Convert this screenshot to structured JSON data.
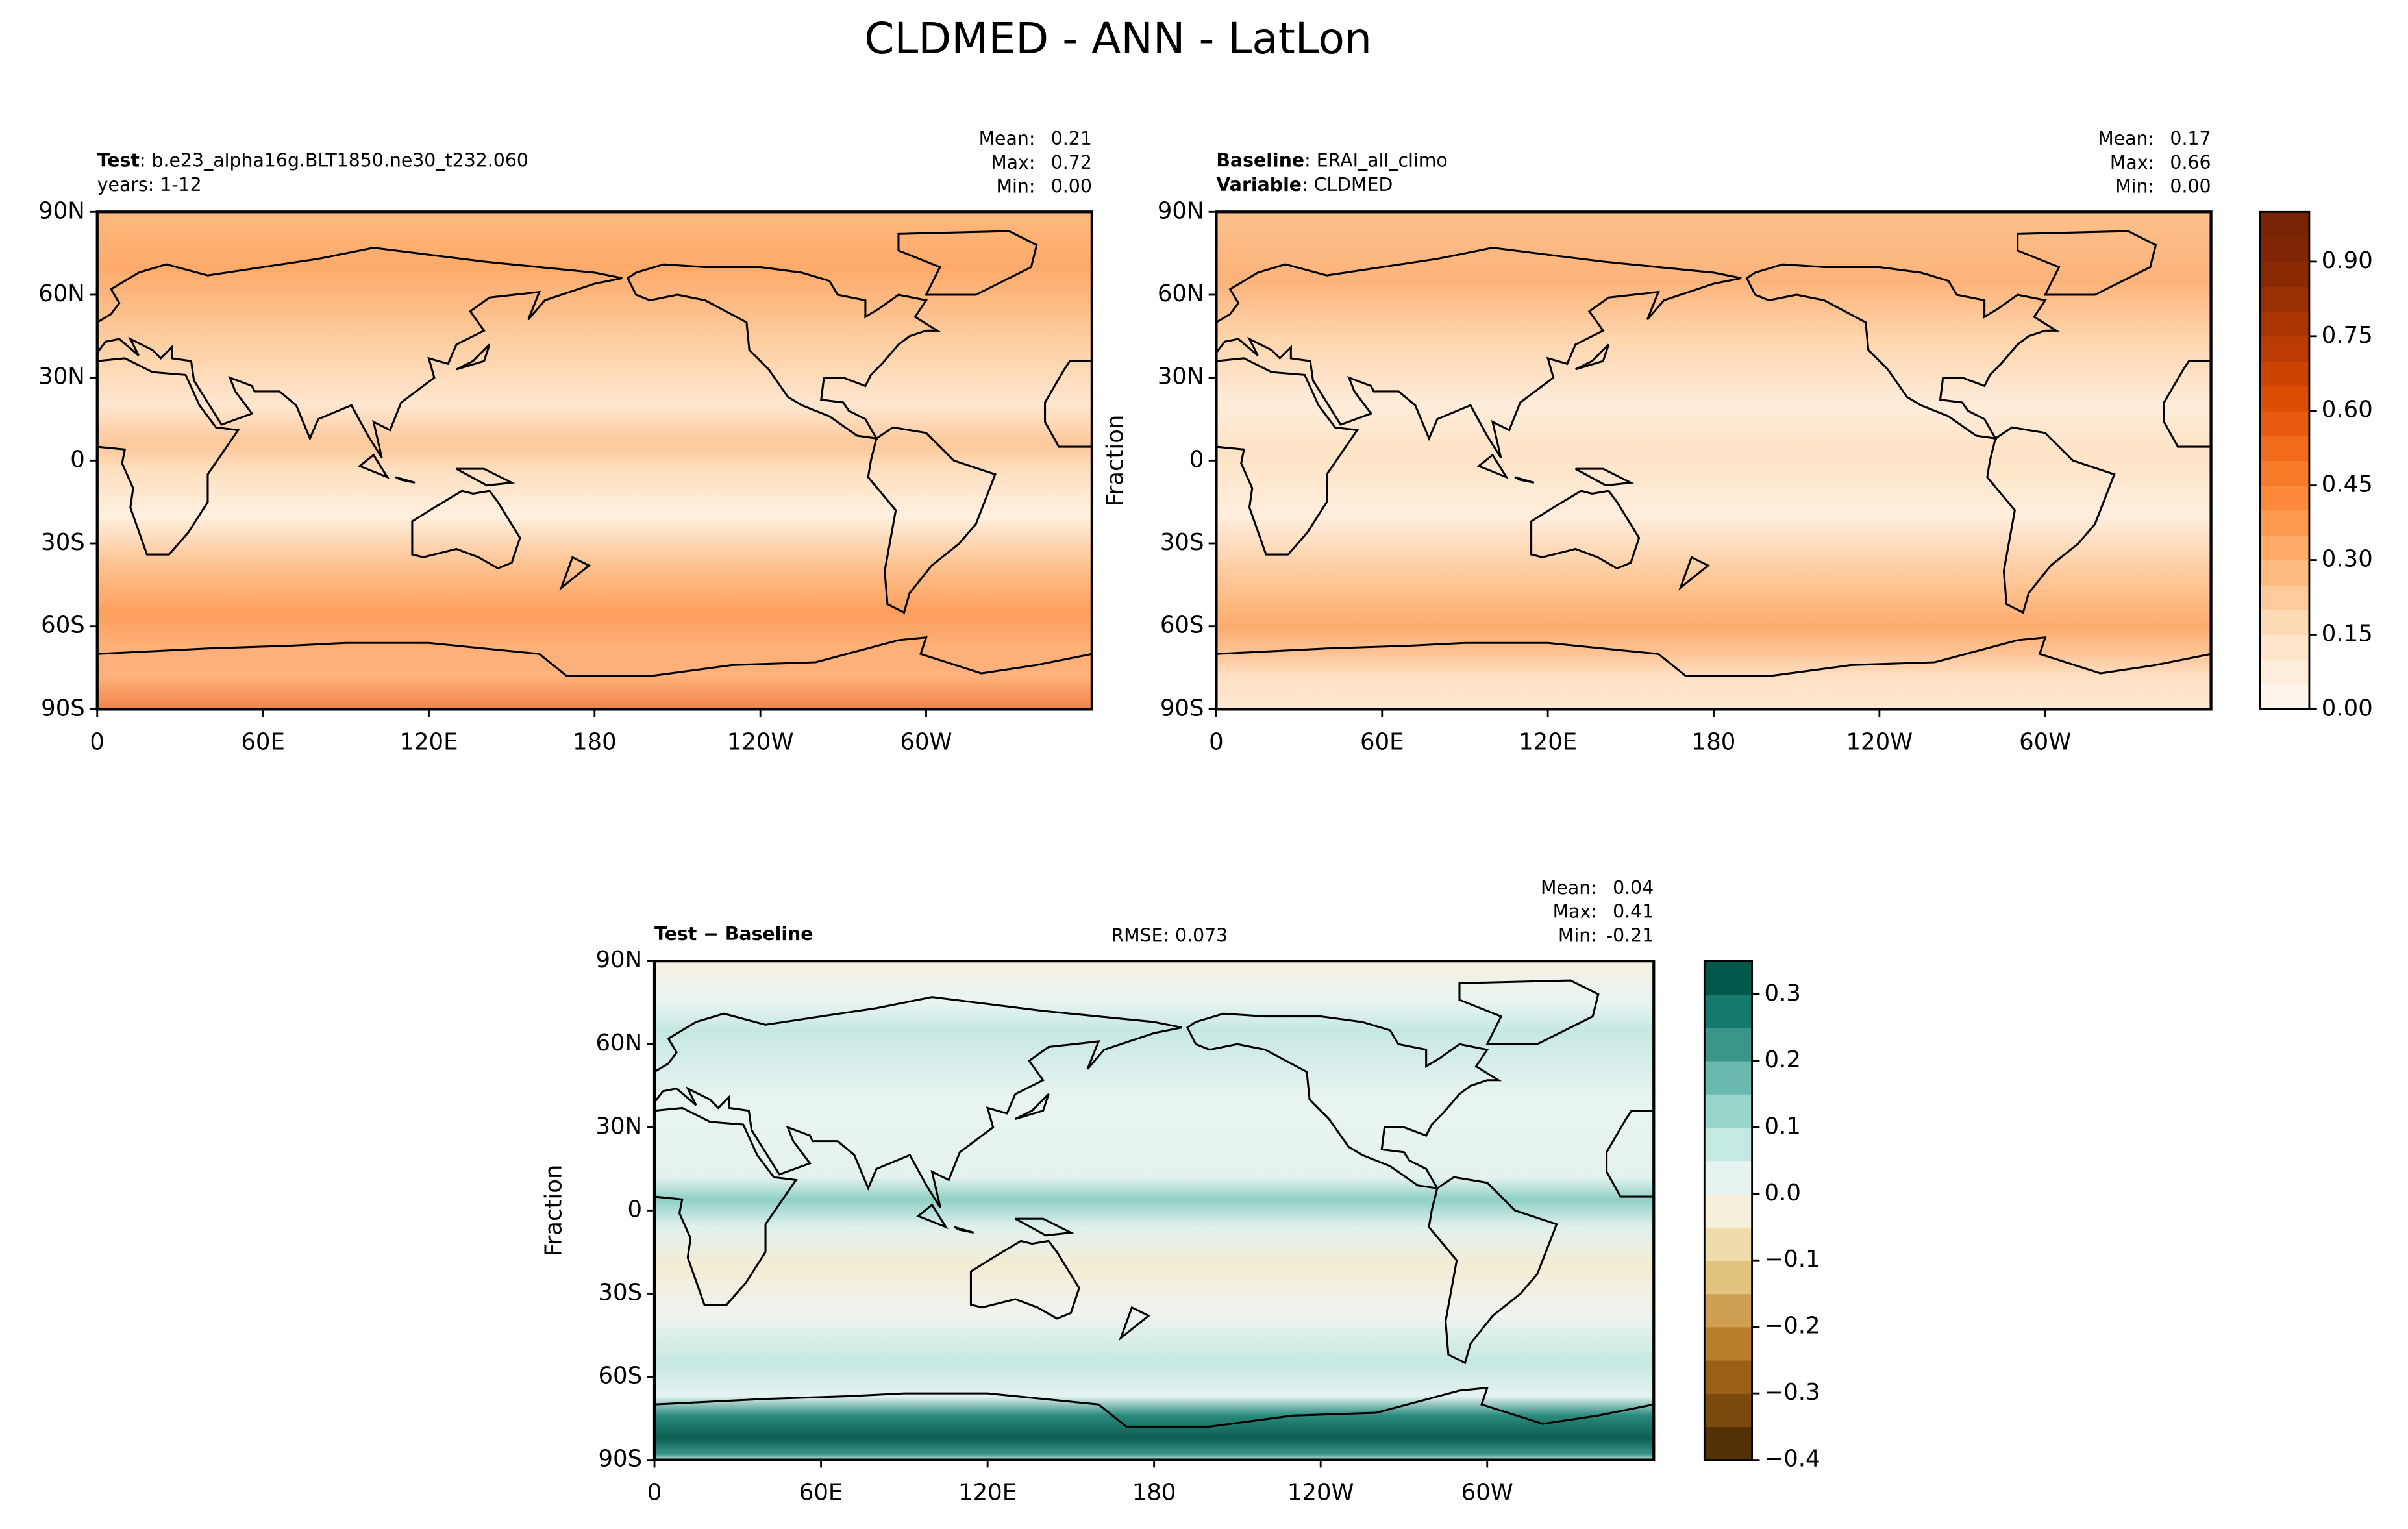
{
  "title": "CLDMED - ANN - LatLon",
  "chart_data": [
    {
      "type": "map",
      "info": [
        {
          "key": "Test",
          "text": ": b.e23_alpha16g.BLT1850.ne30_t232.060"
        }
      ],
      "subtitle": "years: 1-12",
      "stats": [
        {
          "name": "Mean:",
          "value": 0.21
        },
        {
          "name": "Max:",
          "value": 0.72
        },
        {
          "name": "Min:",
          "value": 0,
          "label": "0.00"
        }
      ],
      "xlim": [
        0,
        360
      ],
      "xticks": [
        0,
        {
          "value": 60,
          "label": "60E"
        },
        {
          "value": 120,
          "label": "120E"
        },
        180,
        {
          "value": 240,
          "label": "120W"
        },
        {
          "value": 300,
          "label": "60W"
        }
      ],
      "ylim": [
        -90,
        90
      ],
      "yticks": [
        {
          "value": -90,
          "label": "90S"
        },
        {
          "value": -60,
          "label": "60S"
        },
        {
          "value": -30,
          "label": "30S"
        },
        0,
        {
          "value": 30,
          "label": "30N"
        },
        {
          "value": 60,
          "label": "60N"
        },
        {
          "value": 90,
          "label": "90N"
        }
      ]
    },
    {
      "type": "map",
      "info": [
        {
          "key": "Baseline",
          "text": ": ERAI_all_climo"
        },
        {
          "key": "Variable",
          "text": ": CLDMED"
        }
      ],
      "ylabel": "Fraction",
      "stats": [
        {
          "name": "Mean:",
          "value": 0.17
        },
        {
          "name": "Max:",
          "value": 0.66
        },
        {
          "name": "Min:",
          "value": 0,
          "label": "0.00"
        }
      ],
      "xlim": [
        0,
        360
      ],
      "xticks": [
        0,
        {
          "value": 60,
          "label": "60E"
        },
        {
          "value": 120,
          "label": "120E"
        },
        180,
        {
          "value": 240,
          "label": "120W"
        },
        {
          "value": 300,
          "label": "60W"
        }
      ],
      "ylim": [
        -90,
        90
      ],
      "yticks": [
        {
          "value": -90,
          "label": "90S"
        },
        {
          "value": -60,
          "label": "60S"
        },
        {
          "value": -30,
          "label": "30S"
        },
        0,
        {
          "value": 30,
          "label": "30N"
        },
        {
          "value": 60,
          "label": "60N"
        },
        {
          "value": 90,
          "label": "90N"
        }
      ],
      "colorbar": {
        "lim": [
          0,
          1
        ],
        "ticks": [
          {
            "value": 0,
            "label": "0.00"
          },
          0.15,
          {
            "value": 0.3,
            "label": "0.30"
          },
          0.45,
          {
            "value": 0.6,
            "label": "0.60"
          },
          0.75,
          {
            "value": 0.9,
            "label": "0.90"
          }
        ],
        "colors": [
          "#fff5eb",
          "#feeddb",
          "#fee5cb",
          "#fdd9b5",
          "#fdcb9b",
          "#fdbb80",
          "#fdab67",
          "#fd9a50",
          "#fd8a3b",
          "#f87b2a",
          "#f06b1b",
          "#e65b0f",
          "#dc4d06",
          "#cd4302",
          "#bc3b02",
          "#ab3503",
          "#9a2f03",
          "#8a2a04",
          "#7f2704",
          "#772404"
        ]
      }
    },
    {
      "type": "map",
      "info": [
        {
          "key": "Test − Baseline"
        }
      ],
      "rmse_label": "RMSE:",
      "rmse": 0.073,
      "ylabel": "Fraction",
      "stats": [
        {
          "name": "Mean:",
          "value": 0.04
        },
        {
          "name": "Max:",
          "value": 0.41
        },
        {
          "name": "Min:",
          "value": -0.21
        }
      ],
      "xlim": [
        0,
        360
      ],
      "xticks": [
        0,
        {
          "value": 60,
          "label": "60E"
        },
        {
          "value": 120,
          "label": "120E"
        },
        180,
        {
          "value": 240,
          "label": "120W"
        },
        {
          "value": 300,
          "label": "60W"
        }
      ],
      "ylim": [
        -90,
        90
      ],
      "yticks": [
        {
          "value": -90,
          "label": "90S"
        },
        {
          "value": -60,
          "label": "60S"
        },
        {
          "value": -30,
          "label": "30S"
        },
        0,
        {
          "value": 30,
          "label": "30N"
        },
        {
          "value": 60,
          "label": "60N"
        },
        {
          "value": 90,
          "label": "90N"
        }
      ],
      "colorbar": {
        "lim": [
          -0.4,
          0.35
        ],
        "ticks": [
          {
            "value": -0.4,
            "label": "−0.4"
          },
          {
            "value": -0.3,
            "label": "−0.3"
          },
          {
            "value": -0.2,
            "label": "−0.2"
          },
          {
            "value": -0.1,
            "label": "−0.1"
          },
          {
            "value": 0,
            "label": "0.0"
          },
          0.1,
          0.2,
          0.3
        ],
        "colors": [
          "#543005",
          "#7a4a0c",
          "#9a6016",
          "#b87e2c",
          "#cfa053",
          "#e2c47f",
          "#efdcaa",
          "#f6efdc",
          "#e6f3f1",
          "#c4e8e2",
          "#98d5cb",
          "#69b9ae",
          "#3a968b",
          "#147a6e",
          "#01574a"
        ]
      }
    }
  ]
}
